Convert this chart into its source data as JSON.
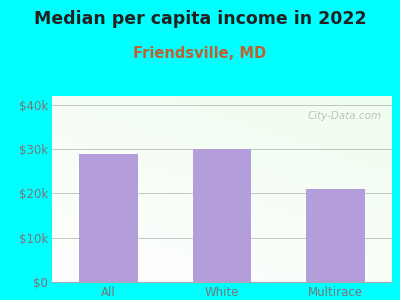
{
  "title": "Median per capita income in 2022",
  "subtitle": "Friendsville, MD",
  "categories": [
    "All",
    "White",
    "Multirace"
  ],
  "values": [
    29000,
    30000,
    21000
  ],
  "bar_color": "#b39ddb",
  "title_fontsize": 12.5,
  "subtitle_fontsize": 10.5,
  "subtitle_color": "#c06030",
  "background_outer": "#00FFFF",
  "ylim": [
    0,
    42000
  ],
  "yticks": [
    0,
    10000,
    20000,
    30000,
    40000
  ],
  "ytick_labels": [
    "$0",
    "$10k",
    "$20k",
    "$30k",
    "$40k"
  ],
  "watermark": "City-Data.com",
  "tick_color": "#777777",
  "tick_fontsize": 8.5
}
